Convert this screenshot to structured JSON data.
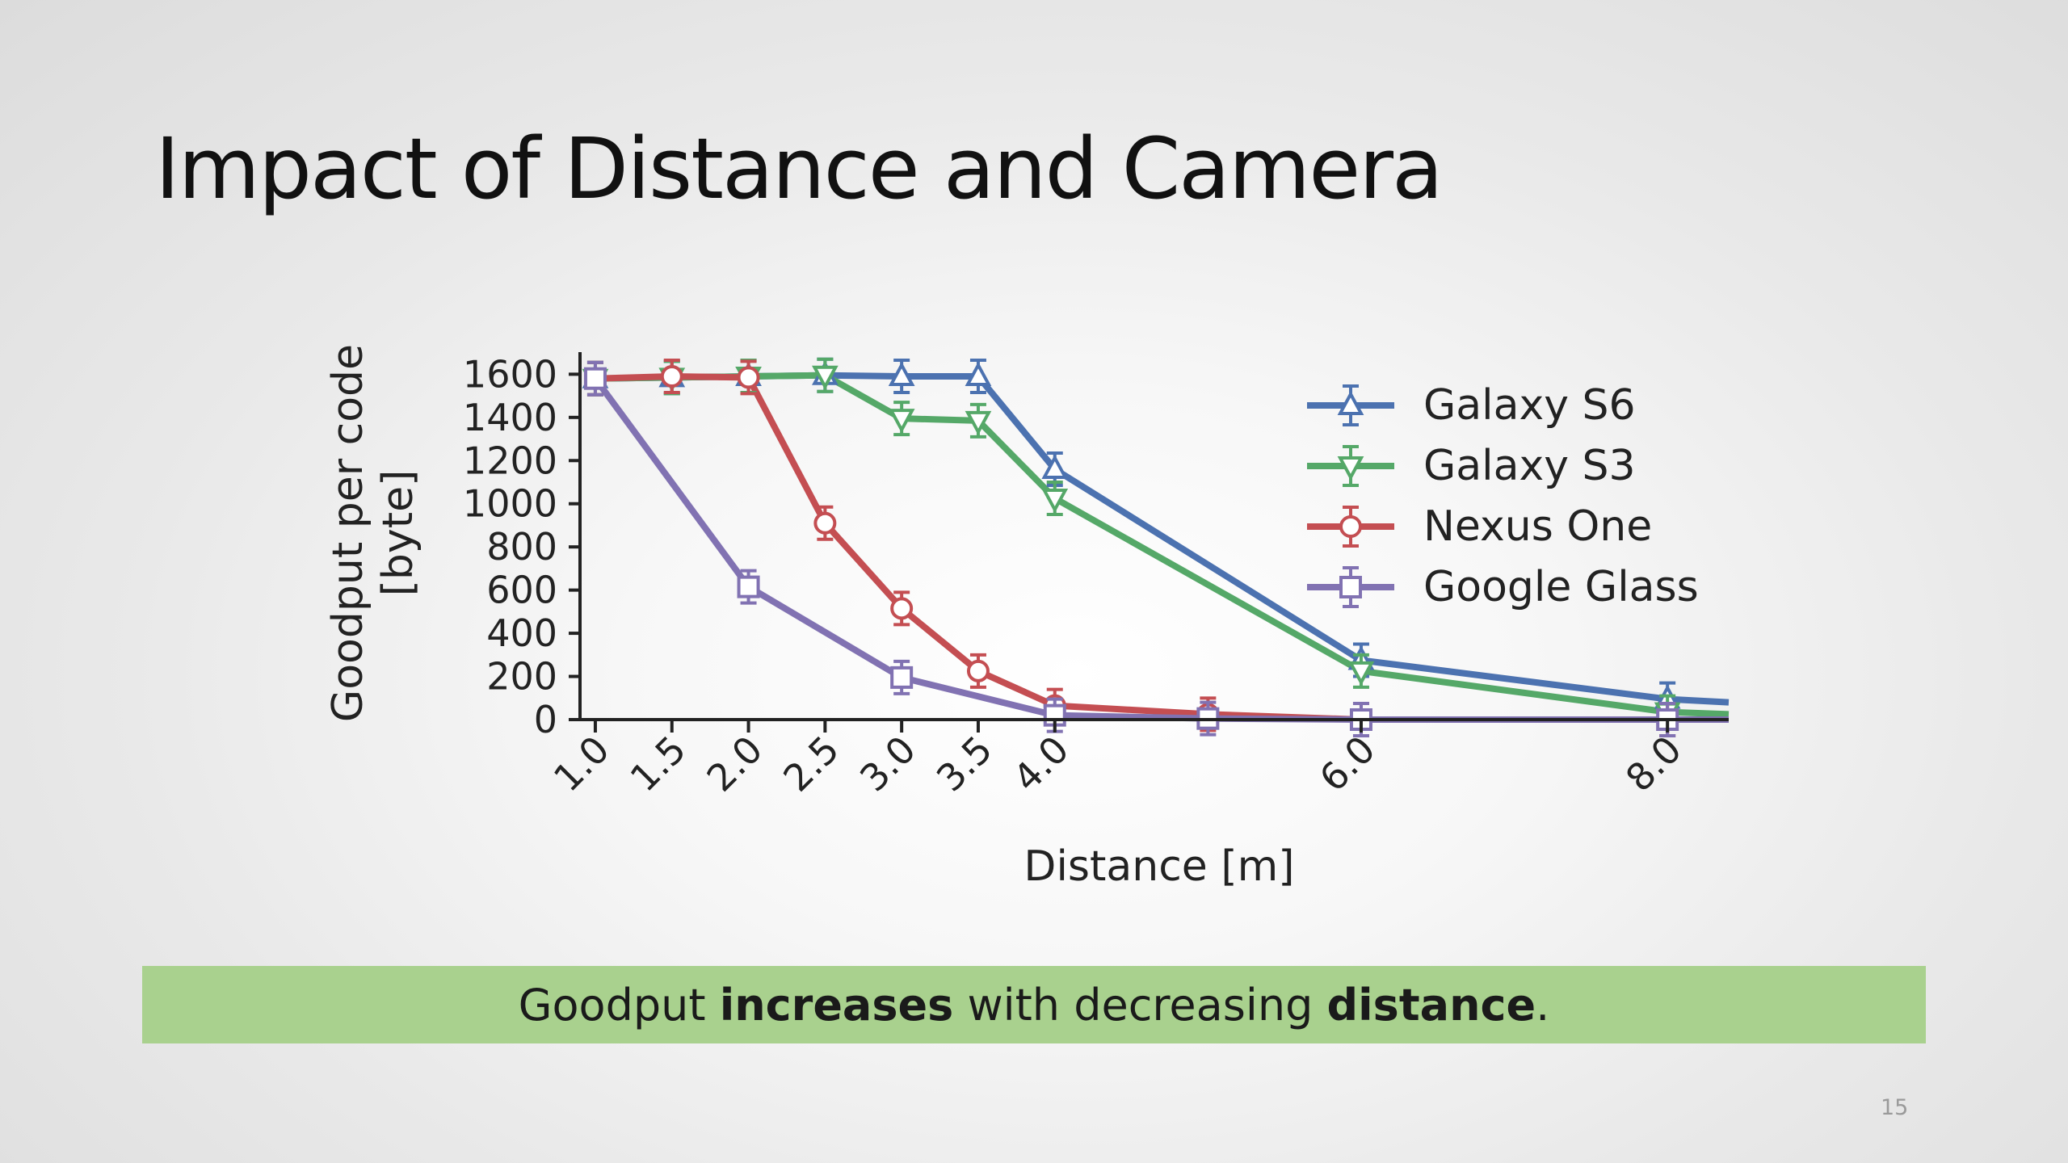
{
  "slide": {
    "title": "Impact of Distance and Camera",
    "page_number": "15",
    "banner": {
      "parts": [
        {
          "text": "Goodput ",
          "bold": false
        },
        {
          "text": "increases",
          "bold": true
        },
        {
          "text": " with decreasing ",
          "bold": false
        },
        {
          "text": "distance",
          "bold": true
        },
        {
          "text": ".",
          "bold": false
        }
      ]
    }
  },
  "chart_data": {
    "type": "line",
    "title": "",
    "xlabel": "Distance [m]",
    "ylabel_lines": [
      "Goodput per code",
      "[byte]"
    ],
    "xlim": [
      0.9,
      8.4
    ],
    "ylim": [
      0,
      1650
    ],
    "xticks": [
      1.0,
      1.5,
      2.0,
      2.5,
      3.0,
      3.5,
      4.0,
      6.0,
      8.0
    ],
    "xtick_labels": [
      "1.0",
      "1.5",
      "2.0",
      "2.5",
      "3.0",
      "3.5",
      "4.0",
      "6.0",
      "8.0"
    ],
    "yticks": [
      0,
      200,
      400,
      600,
      800,
      1000,
      1200,
      1400,
      1600
    ],
    "yticks_labels": [
      "0",
      "200",
      "400",
      "600",
      "800",
      "1000",
      "1200",
      "1400",
      "1600"
    ],
    "grid": false,
    "legend_position": "top-right",
    "series": [
      {
        "name": "Galaxy S6",
        "color": "#4c72b0",
        "marker": "triangle-up",
        "x": [
          1.0,
          1.5,
          2.0,
          2.5,
          3.0,
          3.5,
          4.0,
          6.0,
          8.0,
          8.4
        ],
        "y": [
          1580,
          1585,
          1590,
          1595,
          1590,
          1590,
          1160,
          275,
          95,
          80
        ]
      },
      {
        "name": "Galaxy S3",
        "color": "#55a868",
        "marker": "triangle-down",
        "x": [
          1.0,
          1.5,
          2.0,
          2.5,
          3.0,
          3.5,
          4.0,
          6.0,
          8.0,
          8.4
        ],
        "y": [
          1580,
          1585,
          1590,
          1595,
          1395,
          1385,
          1025,
          225,
          35,
          25
        ]
      },
      {
        "name": "Nexus One",
        "color": "#c44e52",
        "marker": "circle",
        "x": [
          1.0,
          1.5,
          2.0,
          2.5,
          3.0,
          3.5,
          4.0,
          5.0,
          6.0,
          8.0,
          8.4
        ],
        "y": [
          1580,
          1590,
          1585,
          910,
          515,
          225,
          65,
          25,
          0,
          0,
          0
        ]
      },
      {
        "name": "Google Glass",
        "color": "#8172b2",
        "marker": "square",
        "x": [
          1.0,
          2.0,
          3.0,
          4.0,
          5.0,
          6.0,
          8.0,
          8.4
        ],
        "y": [
          1580,
          615,
          195,
          20,
          5,
          0,
          0,
          0
        ]
      }
    ]
  }
}
